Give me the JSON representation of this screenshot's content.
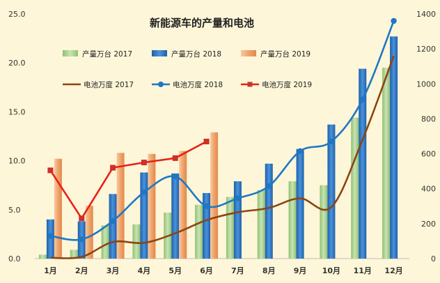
{
  "chart_data": {
    "type": "bar",
    "title": "新能源车的产量和电池",
    "categories": [
      "1月",
      "2月",
      "3月",
      "4月",
      "5月",
      "6月",
      "7月",
      "8月",
      "9月",
      "10月",
      "11月",
      "12月"
    ],
    "y_left": {
      "ticks": [
        "0.0",
        "5.0",
        "10.0",
        "15.0",
        "20.0",
        "25.0"
      ],
      "ylim": [
        0,
        25
      ]
    },
    "y_right": {
      "ticks": [
        "0",
        "200",
        "400",
        "600",
        "800",
        "1000",
        "1200",
        "1400"
      ],
      "ylim": [
        0,
        1400
      ]
    },
    "bar_series": [
      {
        "name": "产量万台 2017",
        "color": "#a9d08e",
        "values": [
          0.4,
          0.9,
          3.4,
          3.5,
          4.7,
          5.5,
          6.3,
          7.0,
          7.9,
          7.5,
          14.4,
          19.5
        ]
      },
      {
        "name": "产量万台 2018",
        "color": "#2e75c6",
        "values": [
          4.0,
          3.8,
          6.6,
          8.8,
          8.7,
          6.7,
          7.9,
          9.7,
          11.2,
          13.7,
          19.4,
          22.7
        ]
      },
      {
        "name": "产量万台 2019",
        "color": "#f4b183",
        "values": [
          10.2,
          5.4,
          10.8,
          10.7,
          11.0,
          12.9,
          null,
          null,
          null,
          null,
          null,
          null
        ]
      }
    ],
    "line_series": [
      {
        "name": "电池万度 2017",
        "color": "#8b4513",
        "marker": "none",
        "values": [
          5,
          10,
          95,
          90,
          145,
          220,
          265,
          290,
          345,
          295,
          680,
          1160
        ]
      },
      {
        "name": "电池万度 2018",
        "color": "#1f77c4",
        "marker": "circle",
        "values": [
          130,
          110,
          215,
          380,
          470,
          300,
          345,
          415,
          615,
          670,
          910,
          1360
        ]
      },
      {
        "name": "电池万度 2019",
        "color": "#e8201c",
        "marker": "square",
        "values": [
          505,
          230,
          520,
          550,
          575,
          670,
          null,
          null,
          null,
          null,
          null,
          null
        ]
      }
    ],
    "legend_position": "top",
    "grid": false
  }
}
